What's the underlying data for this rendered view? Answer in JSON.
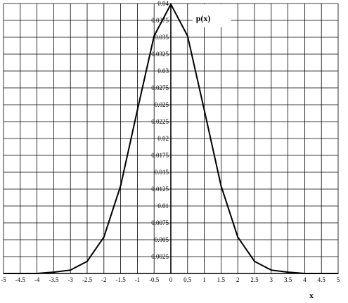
{
  "chart_data": {
    "type": "line",
    "xlabel": "x",
    "ylabel": "",
    "curve_label": "p(x)",
    "xlim": [
      -5,
      5
    ],
    "ylim": [
      0,
      0.04
    ],
    "grid": true,
    "x_ticks": [
      "-5",
      "-4.5",
      "-4",
      "-3.5",
      "-3",
      "-2.5",
      "-2",
      "-1.5",
      "-1",
      "-0.5",
      "0",
      "0.5",
      "1",
      "1.5",
      "2",
      "2.5",
      "3",
      "3.5",
      "4",
      "4.5",
      "5"
    ],
    "y_ticks": [
      "0.0025",
      "0.005",
      "0.0075",
      "0.01",
      "0.0125",
      "0.015",
      "0.0175",
      "0.02",
      "0.0225",
      "0.025",
      "0.0275",
      "0.03",
      "0.0325",
      "0.035",
      "0.0375",
      "0.04"
    ],
    "series": [
      {
        "x": [
          -5,
          -4.5,
          -4,
          -3.5,
          -3,
          -2.5,
          -2,
          -1.5,
          -1,
          -0.5,
          0,
          0.5,
          1,
          1.5,
          2,
          2.5,
          3,
          3.5,
          4,
          4.5,
          5
        ],
        "y": [
          0.0,
          0.0,
          0.0,
          0.0002,
          0.0005,
          0.0018,
          0.0054,
          0.013,
          0.0242,
          0.0352,
          0.0399,
          0.0352,
          0.0242,
          0.013,
          0.0054,
          0.0018,
          0.0005,
          0.0002,
          0.0,
          0.0,
          0.0
        ]
      }
    ]
  }
}
